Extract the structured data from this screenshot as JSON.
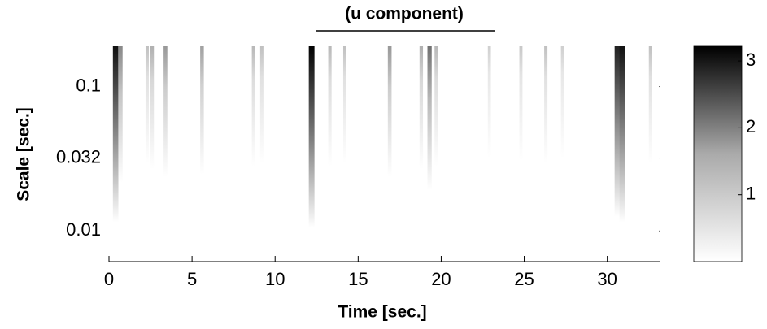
{
  "chart_data": {
    "type": "heatmap",
    "title": "(u component)",
    "x_label": "Time [sec.]",
    "y_label": "Scale [sec.]",
    "x": [
      0.4,
      0.7,
      2.3,
      2.6,
      3.4,
      5.6,
      8.7,
      9.2,
      12.2,
      13.3,
      14.2,
      16.9,
      18.8,
      19.3,
      19.7,
      22.9,
      24.8,
      26.3,
      27.3,
      30.6,
      30.9,
      32.6
    ],
    "values": [
      3.0,
      1.5,
      0.8,
      1.0,
      1.3,
      1.2,
      0.9,
      0.8,
      3.2,
      0.9,
      0.8,
      1.3,
      1.0,
      1.8,
      0.9,
      0.6,
      0.7,
      0.8,
      0.6,
      2.8,
      3.0,
      0.8
    ],
    "xlim": [
      0,
      33.2
    ],
    "xticks": [
      0,
      5,
      10,
      15,
      20,
      25,
      30
    ],
    "ylim": [
      0.0063,
      0.19
    ],
    "yticks": [
      0.01,
      0.032,
      0.1
    ],
    "y_log": true,
    "clim": [
      0,
      3.22
    ],
    "cticks": [
      1,
      2,
      3
    ]
  }
}
